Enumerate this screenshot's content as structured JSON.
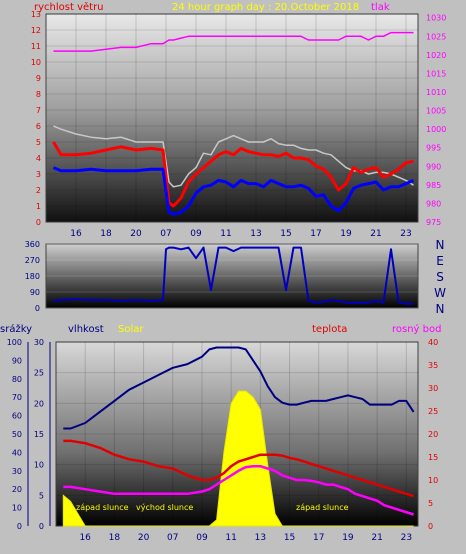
{
  "chart_data": [
    {
      "type": "line",
      "title": "24 hour graph day : 20.October 2018",
      "legend": [
        "rychlost větru",
        "tlak"
      ],
      "y_left_ticks": [
        "0",
        "1",
        "2",
        "3",
        "4",
        "5",
        "6",
        "7",
        "8",
        "9",
        "10",
        "11",
        "12",
        "13"
      ],
      "y_right_ticks": [
        "975",
        "980",
        "985",
        "990",
        "995",
        "1000",
        "1005",
        "1010",
        "1015",
        "1020",
        "1025",
        "1030"
      ],
      "x_ticks": [
        "16",
        "18",
        "20",
        "07",
        "09",
        "11",
        "13",
        "15",
        "17",
        "19",
        "21",
        "23"
      ],
      "ylim_left": [
        0,
        13
      ],
      "ylim_right": [
        975,
        1031
      ],
      "x_hours": [
        14.5,
        15,
        16,
        17,
        18,
        19,
        20,
        21,
        21.8,
        22.2,
        22.5,
        23,
        23.5,
        24,
        24.5,
        25,
        25.5,
        26,
        26.5,
        27,
        27.5,
        28,
        28.5,
        29,
        29.5,
        30,
        30.5,
        31,
        31.5,
        32,
        32.5,
        33,
        33.5,
        34,
        34.5,
        35,
        35.5,
        36,
        36.5,
        37,
        37.5,
        38,
        38.5
      ],
      "series": [
        {
          "values": [
            1021,
            1021,
            1021,
            1021,
            1021.5,
            1022,
            1022,
            1023,
            1023,
            1024,
            1024,
            1024.5,
            1025,
            1025,
            1025,
            1025,
            1025,
            1025,
            1025,
            1025,
            1025,
            1025,
            1025,
            1025,
            1025,
            1025,
            1025,
            1025,
            1024,
            1024,
            1024,
            1024,
            1024,
            1025,
            1025,
            1025,
            1024,
            1025,
            1025,
            1026,
            1026,
            1026,
            1026
          ]
        },
        {
          "values": [
            6,
            5.8,
            5.5,
            5.3,
            5.2,
            5.3,
            5,
            5,
            5,
            2.5,
            2.2,
            2.3,
            3,
            3.4,
            4.3,
            4.2,
            5,
            5.2,
            5.4,
            5.2,
            5,
            5,
            5,
            5.2,
            4.9,
            4.8,
            4.8,
            4.6,
            4.5,
            4.5,
            4.3,
            4.2,
            3.8,
            3.4,
            3.2,
            3.2,
            3,
            3.1,
            3.1,
            3,
            2.8,
            2.6,
            2.3
          ]
        },
        {
          "values": [
            5,
            4.2,
            4.2,
            4.3,
            4.5,
            4.7,
            4.5,
            4.6,
            4.5,
            1.2,
            1,
            1.5,
            2.5,
            3,
            3.4,
            3.8,
            4.2,
            4.4,
            4.2,
            4.6,
            4.4,
            4.3,
            4.2,
            4.2,
            4.1,
            4.3,
            4,
            4,
            3.9,
            3.5,
            3.3,
            2.8,
            2,
            2.4,
            3.4,
            3.1,
            3.3,
            3.4,
            2.8,
            3,
            3.3,
            3.7,
            3.8
          ]
        },
        {
          "values": [
            3.4,
            3.2,
            3.2,
            3.3,
            3.2,
            3.2,
            3.2,
            3.3,
            3.3,
            0.6,
            0.5,
            0.6,
            1,
            1.8,
            2.2,
            2.3,
            2.6,
            2.5,
            2.2,
            2.6,
            2.4,
            2.4,
            2.2,
            2.6,
            2.4,
            2.2,
            2.2,
            2.3,
            2.1,
            1.6,
            1.7,
            1,
            0.7,
            1.2,
            2.1,
            2.3,
            2.4,
            2.5,
            2,
            2.2,
            2.2,
            2.4,
            2.6
          ]
        }
      ]
    },
    {
      "type": "line",
      "title": "",
      "y_left_ticks": [
        "0",
        "90",
        "180",
        "270",
        "360"
      ],
      "y_right_labels": [
        "N",
        "W",
        "S",
        "E",
        "N"
      ],
      "ylim": [
        0,
        360
      ],
      "x_hours": [
        14.5,
        15,
        16,
        17,
        18,
        19,
        20,
        21,
        21.8,
        22,
        22.2,
        22.5,
        23,
        23.5,
        24,
        24.5,
        25,
        25.5,
        26,
        26.5,
        27,
        27.5,
        28,
        28.5,
        29,
        29.5,
        30,
        30.5,
        31,
        31.5,
        32,
        32.5,
        33,
        33.5,
        34,
        34.5,
        35,
        35.5,
        36,
        36.5,
        37,
        37.5,
        38,
        38.5
      ],
      "values": [
        40,
        45,
        50,
        45,
        45,
        40,
        45,
        40,
        45,
        330,
        340,
        340,
        330,
        340,
        280,
        340,
        100,
        340,
        340,
        320,
        340,
        340,
        340,
        340,
        340,
        340,
        100,
        340,
        340,
        40,
        30,
        35,
        45,
        40,
        30,
        30,
        30,
        30,
        40,
        30,
        330,
        35,
        25,
        25
      ]
    },
    {
      "type": "line",
      "title": "",
      "legend": [
        "srážky",
        "vlhkost",
        "Solar",
        "teplota",
        "rosný bod"
      ],
      "y_left_ticks": [
        "0",
        "10",
        "20",
        "30",
        "40",
        "50",
        "60",
        "70",
        "80",
        "90",
        "100"
      ],
      "y_mid_ticks": [
        "0",
        "5",
        "10",
        "15",
        "20",
        "25",
        "30"
      ],
      "y_right_ticks": [
        "0",
        "5",
        "10",
        "15",
        "20",
        "25",
        "30",
        "35",
        "40"
      ],
      "x_ticks": [
        "16",
        "18",
        "20",
        "07",
        "09",
        "11",
        "13",
        "15",
        "17",
        "19",
        "21",
        "23"
      ],
      "annotations": [
        "západ slunce",
        "východ slunce",
        "západ slunce"
      ],
      "ylim_left": [
        0,
        100
      ],
      "ylim_right": [
        0,
        40
      ],
      "x_hours": [
        14.5,
        15,
        16,
        17,
        18,
        19,
        20,
        21,
        22,
        23,
        24,
        24.5,
        25,
        25.5,
        26,
        26.5,
        27,
        27.5,
        28,
        28.5,
        29,
        29.5,
        30,
        30.5,
        31,
        31.5,
        32,
        32.5,
        33,
        33.5,
        34,
        34.5,
        35,
        35.5,
        36,
        36.5,
        37,
        37.5,
        38,
        38.5
      ],
      "series": [
        {
          "name": "vlhkost",
          "values": [
            53,
            53,
            56,
            62,
            68,
            74,
            78,
            82,
            86,
            88,
            92,
            96,
            97,
            97,
            97,
            97,
            96,
            90,
            84,
            76,
            70,
            67,
            66,
            66,
            67,
            68,
            68,
            68,
            69,
            70,
            71,
            70,
            69,
            66,
            66,
            66,
            66,
            68,
            68,
            62
          ]
        },
        {
          "name": "teplota",
          "values": [
            18.5,
            18.5,
            18,
            17,
            15.5,
            14.5,
            14,
            13,
            12.5,
            11,
            10,
            10,
            10.5,
            11.5,
            13,
            14,
            14.5,
            15,
            15.5,
            15.5,
            15.5,
            15.3,
            14.8,
            14.5,
            14,
            13.5,
            13,
            12.5,
            12,
            11.5,
            11,
            10.5,
            10,
            9.5,
            9,
            8.5,
            8,
            7.5,
            7,
            6.5
          ]
        },
        {
          "name": "rosný bod",
          "values": [
            8.5,
            8.5,
            8,
            7.5,
            7,
            7,
            7,
            7,
            7,
            7,
            7.5,
            8,
            9,
            10,
            11,
            12,
            12.8,
            13,
            13,
            12.5,
            12,
            11,
            10.5,
            10,
            10,
            9.8,
            9.5,
            9,
            9,
            8.5,
            8,
            7,
            6.5,
            6,
            5.5,
            4.5,
            4,
            3.5,
            3,
            2.5
          ]
        },
        {
          "name": "Solar",
          "values": [
            5,
            4,
            0,
            0,
            0,
            0,
            0,
            0,
            0,
            0,
            0,
            0,
            1,
            12,
            20,
            22,
            22,
            21,
            19,
            10,
            2,
            0,
            0,
            0,
            0,
            0,
            0,
            0,
            0,
            0,
            0,
            0,
            0,
            0,
            0,
            0,
            0,
            0,
            0,
            0
          ]
        }
      ]
    }
  ]
}
